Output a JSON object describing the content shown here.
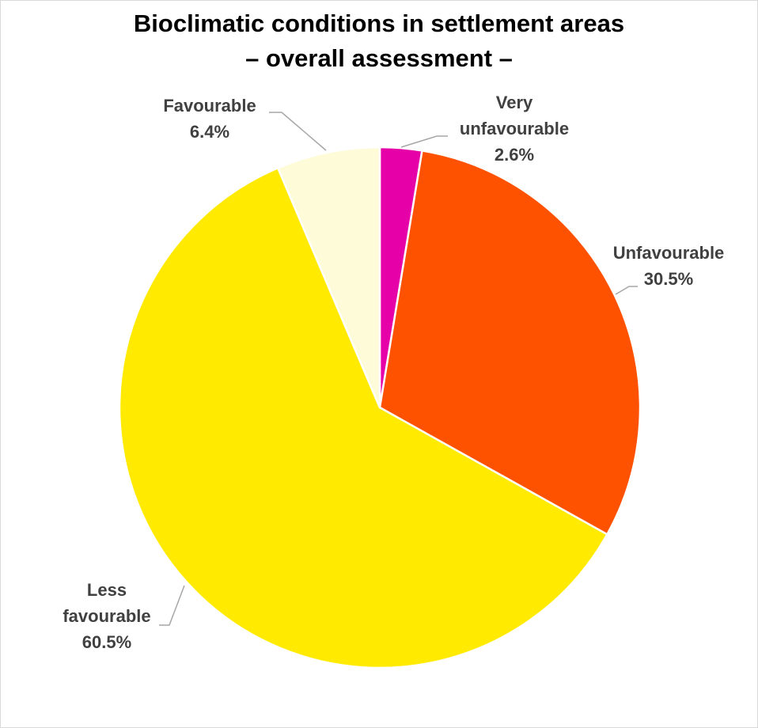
{
  "chart_data": {
    "type": "pie",
    "title": [
      "Bioclimatic conditions in settlement areas",
      "– overall assessment –"
    ],
    "slices": [
      {
        "label": [
          "Very",
          "unfavourable"
        ],
        "value_label": "2.6%",
        "value": 2.6,
        "color": "#e600a8"
      },
      {
        "label": [
          "Unfavourable"
        ],
        "value_label": "30.5%",
        "value": 30.5,
        "color": "#ff5200"
      },
      {
        "label": [
          "Less",
          "favourable"
        ],
        "value_label": "60.5%",
        "value": 60.5,
        "color": "#ffea00"
      },
      {
        "label": [
          "Favourable"
        ],
        "value_label": "6.4%",
        "value": 6.4,
        "color": "#fefbd9"
      }
    ],
    "start_angle_deg": 0,
    "direction": "clockwise",
    "slice_border_color": "#ffffff",
    "leader_line_color": "#a6a6a6",
    "legend": "none"
  }
}
